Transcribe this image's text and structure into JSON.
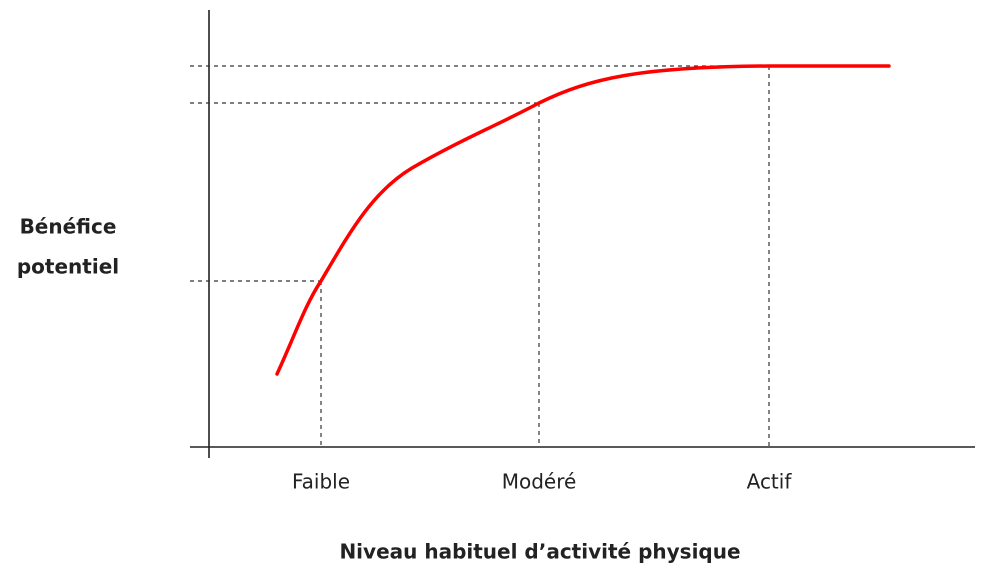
{
  "chart_data": {
    "type": "line",
    "ylabel_lines": [
      "Bénéfice",
      "potentiel"
    ],
    "xlabel": "Niveau habituel d’activité physique",
    "categories": [
      "Faible",
      "Modéré",
      "Actif"
    ],
    "color": "#ff0000"
  }
}
